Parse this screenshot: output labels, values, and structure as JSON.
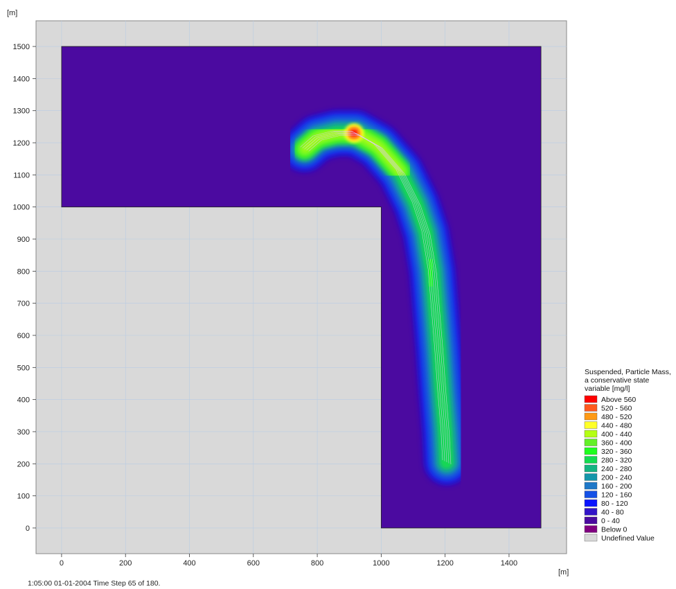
{
  "chart_data": {
    "type": "heatmap",
    "title": "",
    "y_unit_label": "[m]",
    "x_unit_label": "[m]",
    "xlim": [
      -80,
      1580
    ],
    "ylim": [
      -80,
      1580
    ],
    "x_ticks": [
      0,
      200,
      400,
      600,
      800,
      1000,
      1200,
      1400
    ],
    "y_ticks": [
      0,
      100,
      200,
      300,
      400,
      500,
      600,
      700,
      800,
      900,
      1000,
      1100,
      1200,
      1300,
      1400,
      1500
    ],
    "grid": true,
    "domain_polygon": [
      [
        0,
        1000
      ],
      [
        0,
        1500
      ],
      [
        1500,
        1500
      ],
      [
        1500,
        0
      ],
      [
        1000,
        0
      ],
      [
        1000,
        1000
      ]
    ],
    "plume_path": [
      [
        1205,
        205
      ],
      [
        1200,
        300
      ],
      [
        1190,
        420
      ],
      [
        1180,
        560
      ],
      [
        1170,
        680
      ],
      [
        1160,
        800
      ],
      [
        1140,
        920
      ],
      [
        1110,
        1010
      ],
      [
        1060,
        1110
      ],
      [
        990,
        1190
      ],
      [
        920,
        1230
      ],
      [
        860,
        1230
      ],
      [
        800,
        1215
      ],
      [
        760,
        1180
      ]
    ],
    "hotspot": {
      "x": 915,
      "y": 1230,
      "value_class": "Above 560"
    },
    "legend": {
      "title": "Suspended, Particle Mass, a conservative state variable [mg/l]",
      "placement": "right",
      "entries": [
        {
          "label": "Above 560",
          "color": "#ff0000"
        },
        {
          "label": "520 - 560",
          "color": "#ff5a1e"
        },
        {
          "label": "480 - 520",
          "color": "#ff9a14"
        },
        {
          "label": "440 - 480",
          "color": "#ffff28"
        },
        {
          "label": "400 - 440",
          "color": "#b4ff14"
        },
        {
          "label": "360 - 400",
          "color": "#64f028"
        },
        {
          "label": "320 - 360",
          "color": "#1eff1e"
        },
        {
          "label": "280 - 320",
          "color": "#14dc50"
        },
        {
          "label": "240 - 280",
          "color": "#14b482"
        },
        {
          "label": "200 - 240",
          "color": "#1496aa"
        },
        {
          "label": "160 - 200",
          "color": "#1e78c8"
        },
        {
          "label": "120 - 160",
          "color": "#1450e6"
        },
        {
          "label": "80 - 120",
          "color": "#0a14ff"
        },
        {
          "label": "40 - 80",
          "color": "#3214c8"
        },
        {
          "label": "0 - 40",
          "color": "#4b0aa0"
        },
        {
          "label": "Below 0",
          "color": "#800080"
        },
        {
          "label": "Undefined Value",
          "color": "#d9d9d9"
        }
      ]
    }
  },
  "status_text": "1:05:00 01-01-2004  Time Step 65 of 180."
}
